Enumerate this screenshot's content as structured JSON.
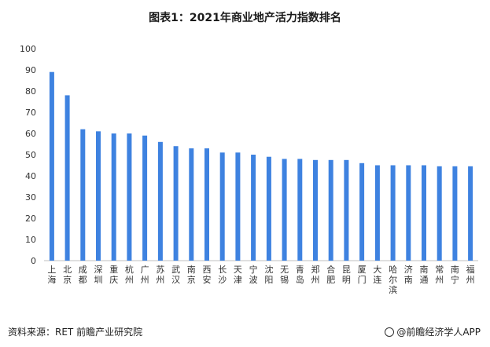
{
  "chart_data": {
    "type": "bar",
    "title": "图表1：2021年商业地产活力指数排名",
    "categories": [
      "上海",
      "北京",
      "成都",
      "深圳",
      "重庆",
      "杭州",
      "广州",
      "苏州",
      "武汉",
      "南京",
      "西安",
      "长沙",
      "天津",
      "宁波",
      "沈阳",
      "无锡",
      "青岛",
      "郑州",
      "合肥",
      "昆明",
      "厦门",
      "大连",
      "哈尔滨",
      "济南",
      "南通",
      "常州",
      "南宁",
      "福州"
    ],
    "values": [
      89,
      78,
      62,
      61,
      60,
      60,
      59,
      56,
      54,
      53,
      53,
      51,
      51,
      50,
      49,
      48,
      48,
      47.5,
      47.5,
      47.5,
      46,
      45,
      45,
      45,
      45,
      44.5,
      44.5,
      44.5
    ],
    "ylim": [
      0,
      100
    ],
    "yticks": [
      0,
      10,
      20,
      30,
      40,
      50,
      60,
      70,
      80,
      90,
      100
    ],
    "xlabel": "",
    "ylabel": "",
    "grid": false,
    "bar_color": "#3e82e0"
  },
  "footer": {
    "source": "资料来源：RET 前瞻产业研究院",
    "brand": "@前瞻经济学人APP"
  }
}
